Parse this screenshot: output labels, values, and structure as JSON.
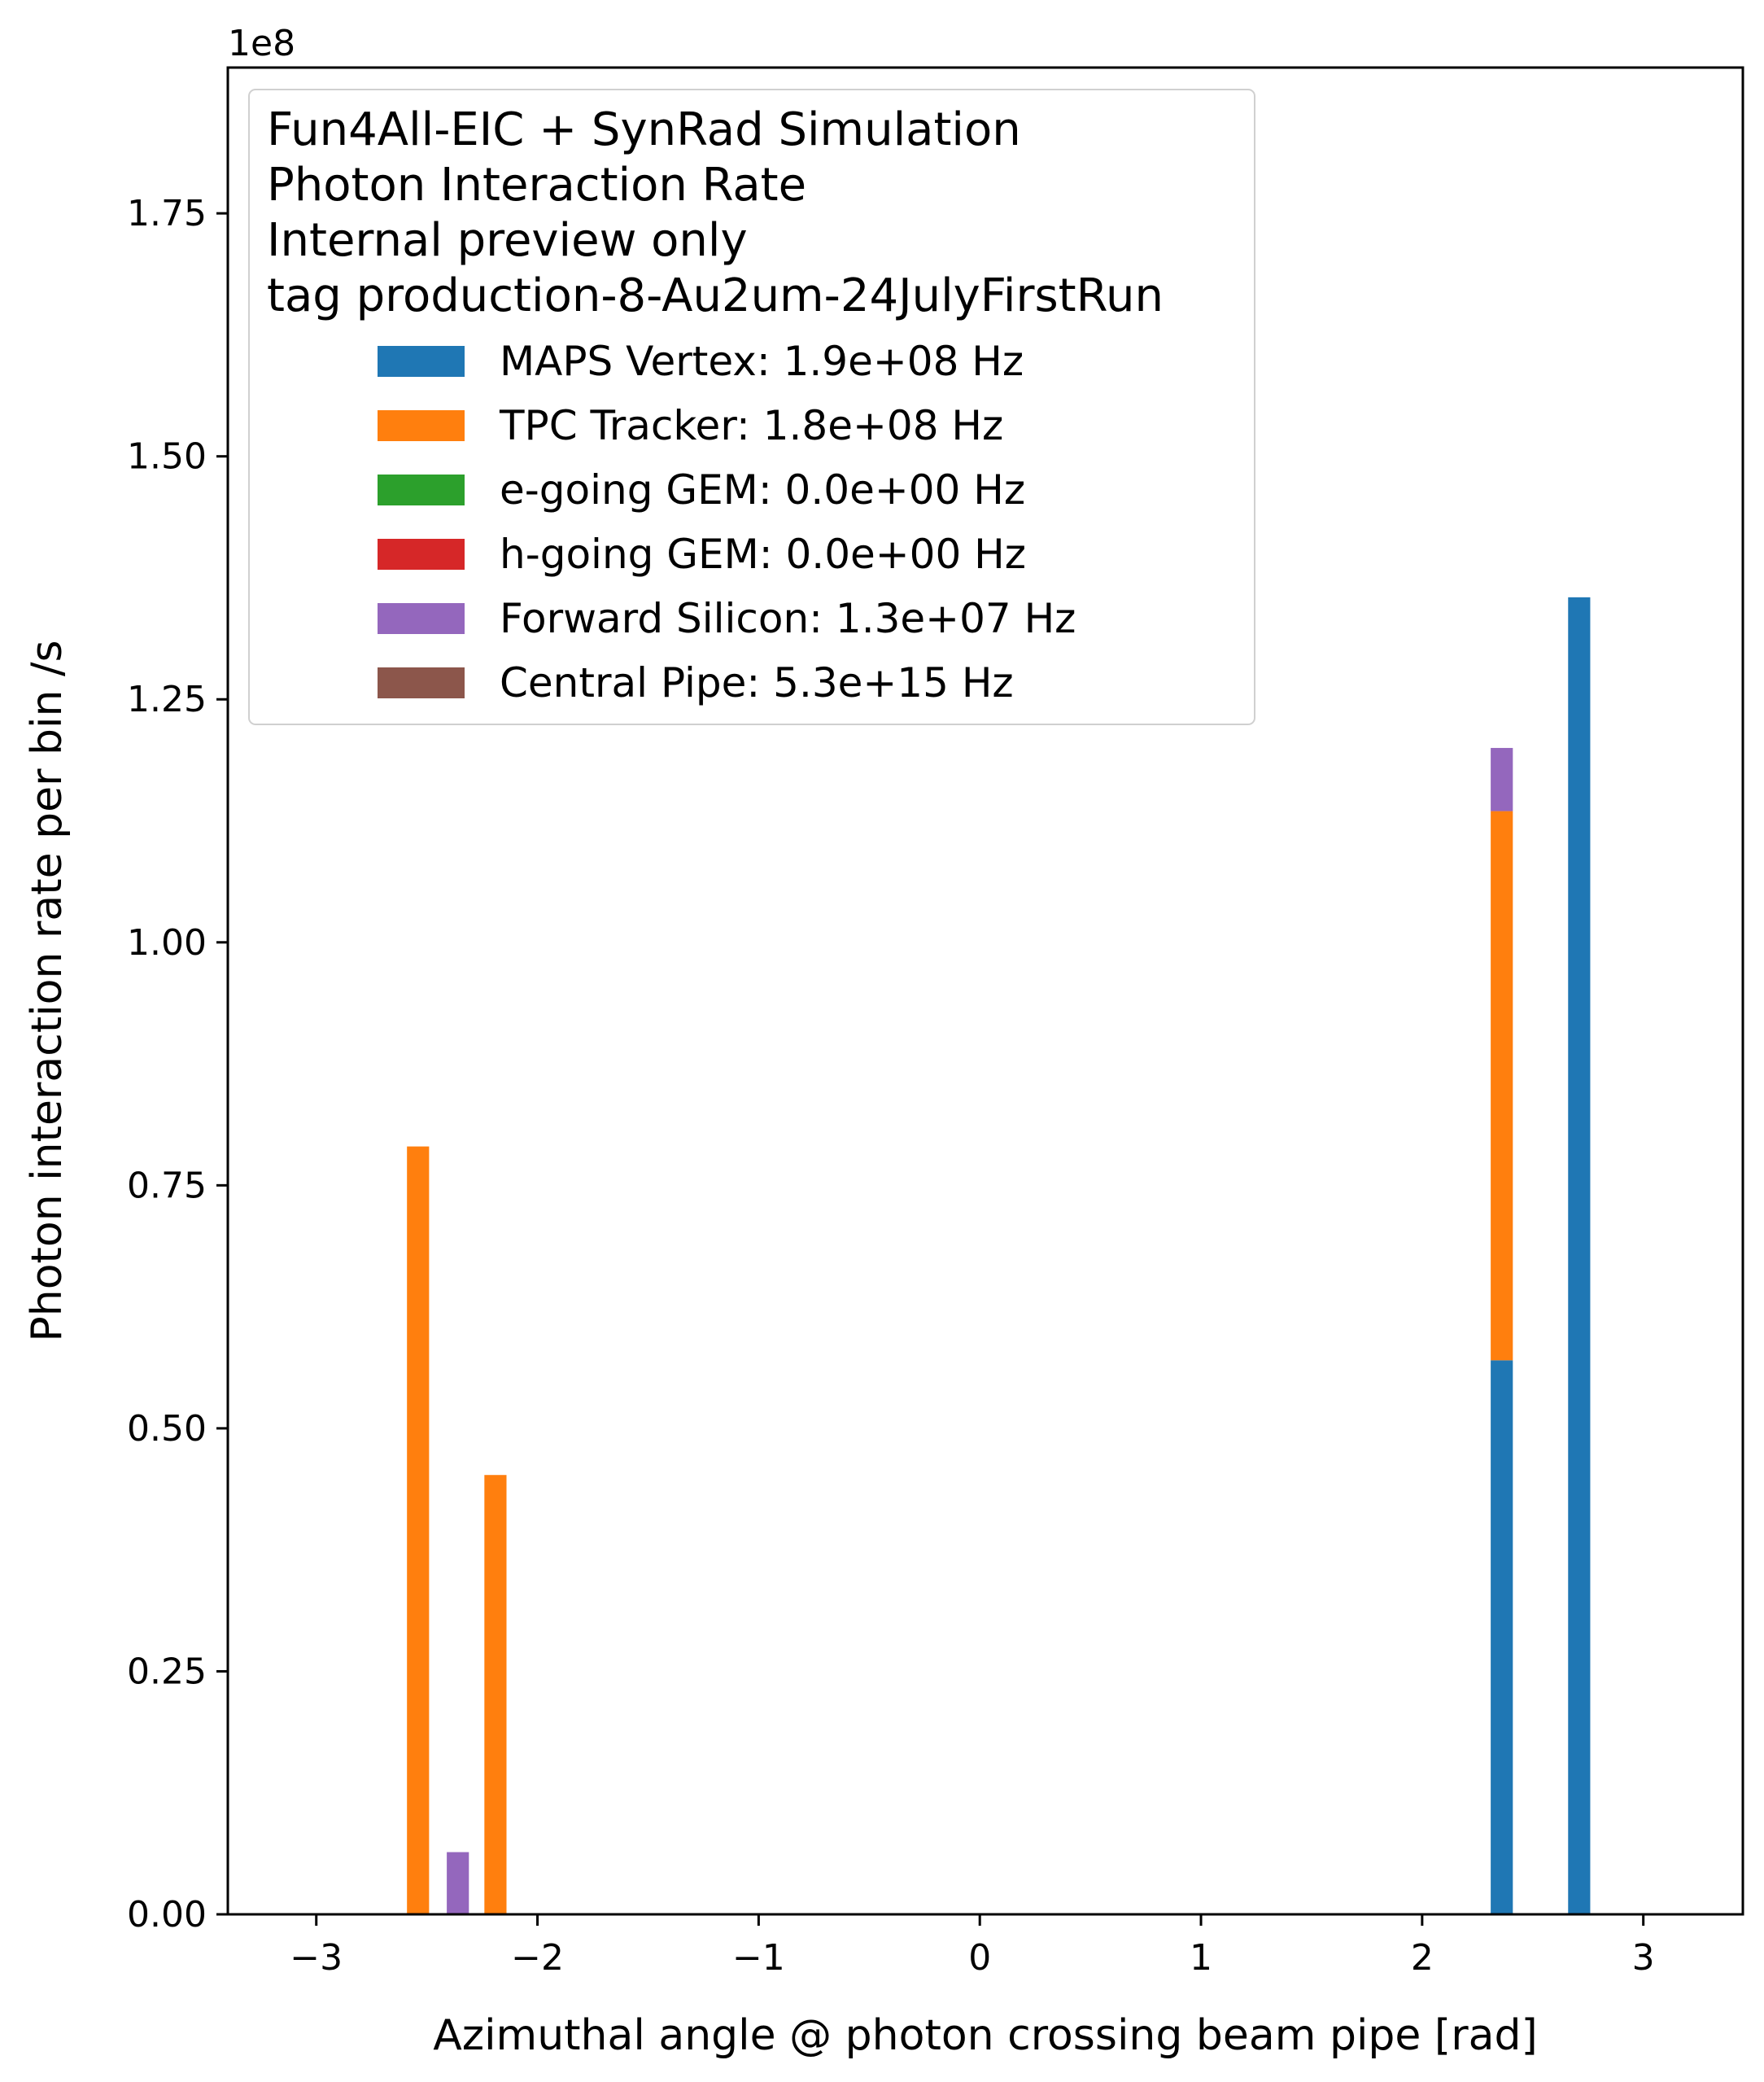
{
  "chart_data": {
    "type": "bar",
    "stacked": true,
    "xlabel": "Azimuthal angle @ photon crossing beam pipe [rad]",
    "ylabel": "Photon interaction rate per bin /s",
    "y_offset_label": "1e8",
    "y_scale": 100000000,
    "xlim": [
      -3.4,
      3.45
    ],
    "ylim": [
      0,
      1.9
    ],
    "x_ticks": [
      -3,
      -2,
      -1,
      0,
      1,
      2,
      3
    ],
    "x_tick_labels": [
      "−3",
      "−2",
      "−1",
      "0",
      "1",
      "2",
      "3"
    ],
    "y_ticks": [
      0,
      0.25,
      0.5,
      0.75,
      1.0,
      1.25,
      1.5,
      1.75
    ],
    "y_tick_labels": [
      "0.00",
      "0.25",
      "0.50",
      "0.75",
      "1.00",
      "1.25",
      "1.50",
      "1.75"
    ],
    "grid": false,
    "legend_placement": "upper-left",
    "legend_title_lines": [
      "Fun4All-EIC + SynRad Simulation",
      "Photon Interaction Rate",
      "Internal preview only",
      "tag production-8-Au2um-24JulyFirstRun"
    ],
    "bin_width": 0.1,
    "series": [
      {
        "name": "MAPS Vertex: 1.9e+08 Hz",
        "color": "#1f77b4",
        "points": [
          {
            "x": 2.36,
            "y": 0.57
          },
          {
            "x": 2.71,
            "y": 1.355
          }
        ]
      },
      {
        "name": "TPC Tracker: 1.8e+08 Hz",
        "color": "#ff7f0e",
        "points": [
          {
            "x": -2.54,
            "y": 0.79
          },
          {
            "x": -2.19,
            "y": 0.452
          },
          {
            "x": 2.36,
            "y": 0.565
          }
        ]
      },
      {
        "name": "e-going GEM: 0.0e+00 Hz",
        "color": "#2ca02c",
        "points": []
      },
      {
        "name": "h-going GEM: 0.0e+00 Hz",
        "color": "#d62728",
        "points": []
      },
      {
        "name": "Forward Silicon: 1.3e+07 Hz",
        "color": "#9467bd",
        "points": [
          {
            "x": -2.36,
            "y": 0.064
          },
          {
            "x": 2.36,
            "y": 0.065
          }
        ]
      },
      {
        "name": "Central Pipe: 5.3e+15 Hz",
        "color": "#8c564b",
        "points": []
      }
    ]
  }
}
